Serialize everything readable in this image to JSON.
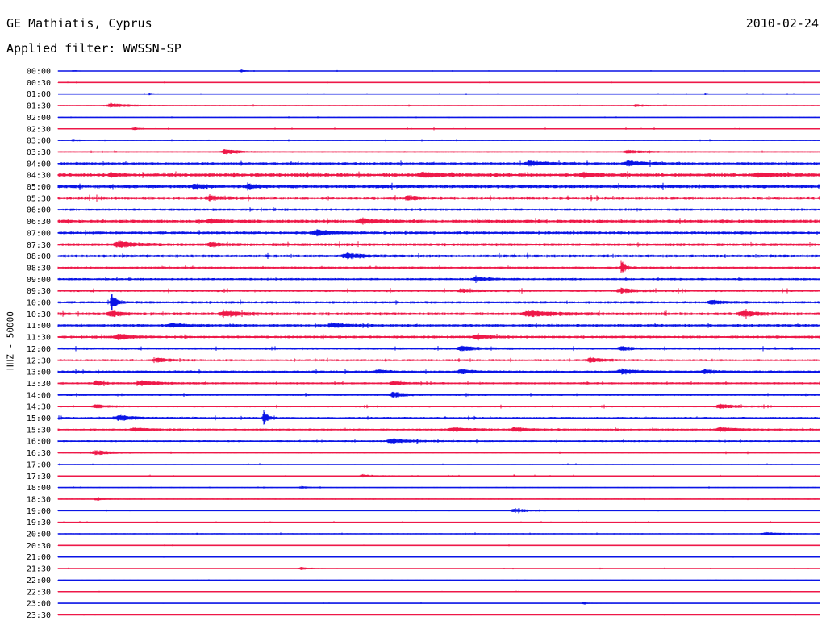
{
  "header": {
    "station": "GE Mathiatis, Cyprus",
    "date": "2010-02-24",
    "filter": "Applied filter: WWSSN-SP"
  },
  "chart_data": {
    "type": "line",
    "title": "GE Mathiatis, Cyprus",
    "ylabel": "HHZ - 50000",
    "colors": [
      "#0a14e6",
      "#ee1848"
    ],
    "rows": [
      {
        "label": "00:00",
        "noise": 0.5,
        "events": [
          [
            0.02,
            1.2,
            0.01
          ],
          [
            0.24,
            1.5,
            0.018
          ]
        ]
      },
      {
        "label": "00:30",
        "noise": 0.6,
        "events": []
      },
      {
        "label": "01:00",
        "noise": 0.6,
        "events": [
          [
            0.12,
            1.6,
            0.012
          ],
          [
            0.85,
            1.3,
            0.01
          ]
        ]
      },
      {
        "label": "01:30",
        "noise": 0.8,
        "events": [
          [
            0.07,
            3.0,
            0.045
          ],
          [
            0.76,
            1.6,
            0.025
          ]
        ]
      },
      {
        "label": "02:00",
        "noise": 0.6,
        "events": []
      },
      {
        "label": "02:30",
        "noise": 0.8,
        "events": [
          [
            0.1,
            1.5,
            0.02
          ]
        ]
      },
      {
        "label": "03:00",
        "noise": 0.9,
        "events": [
          [
            0.02,
            1.2,
            0.02
          ]
        ]
      },
      {
        "label": "03:30",
        "noise": 1.0,
        "events": [
          [
            0.22,
            3.2,
            0.04
          ],
          [
            0.75,
            2.2,
            0.05
          ]
        ]
      },
      {
        "label": "04:00",
        "noise": 1.6,
        "events": [
          [
            0.62,
            3.5,
            0.04
          ],
          [
            0.75,
            3.0,
            0.05
          ]
        ]
      },
      {
        "label": "04:30",
        "noise": 2.2,
        "events": [
          [
            0.07,
            2.6,
            0.02
          ],
          [
            0.48,
            2.6,
            0.05
          ],
          [
            0.69,
            2.5,
            0.04
          ],
          [
            0.92,
            2.6,
            0.05
          ]
        ]
      },
      {
        "label": "05:00",
        "noise": 2.2,
        "events": [
          [
            0.18,
            2.5,
            0.03
          ],
          [
            0.25,
            2.3,
            0.03
          ]
        ]
      },
      {
        "label": "05:30",
        "noise": 2.0,
        "events": [
          [
            0.2,
            2.3,
            0.03
          ],
          [
            0.46,
            2.5,
            0.03
          ]
        ]
      },
      {
        "label": "06:00",
        "noise": 1.6,
        "events": []
      },
      {
        "label": "06:30",
        "noise": 2.1,
        "events": [
          [
            0.2,
            2.3,
            0.03
          ],
          [
            0.4,
            3.0,
            0.04
          ]
        ]
      },
      {
        "label": "07:00",
        "noise": 1.8,
        "events": [
          [
            0.34,
            3.6,
            0.04
          ]
        ]
      },
      {
        "label": "07:30",
        "noise": 1.9,
        "events": [
          [
            0.08,
            3.6,
            0.05
          ],
          [
            0.2,
            2.4,
            0.03
          ]
        ]
      },
      {
        "label": "08:00",
        "noise": 1.9,
        "events": [
          [
            0.38,
            3.5,
            0.04
          ]
        ]
      },
      {
        "label": "08:30",
        "noise": 1.4,
        "events": [
          [
            0.74,
            10.0,
            0.01
          ]
        ]
      },
      {
        "label": "09:00",
        "noise": 1.5,
        "events": [
          [
            0.55,
            2.6,
            0.04
          ]
        ]
      },
      {
        "label": "09:30",
        "noise": 1.6,
        "events": [
          [
            0.53,
            2.5,
            0.03
          ],
          [
            0.74,
            3.0,
            0.04
          ]
        ]
      },
      {
        "label": "10:00",
        "noise": 1.6,
        "events": [
          [
            0.07,
            12.0,
            0.012
          ],
          [
            0.86,
            2.4,
            0.04
          ]
        ]
      },
      {
        "label": "10:30",
        "noise": 2.0,
        "events": [
          [
            0.07,
            3.2,
            0.03
          ],
          [
            0.22,
            3.0,
            0.05
          ],
          [
            0.62,
            3.5,
            0.06
          ],
          [
            0.9,
            3.0,
            0.04
          ]
        ]
      },
      {
        "label": "11:00",
        "noise": 1.7,
        "events": [
          [
            0.15,
            2.6,
            0.04
          ],
          [
            0.36,
            2.8,
            0.04
          ]
        ]
      },
      {
        "label": "11:30",
        "noise": 1.7,
        "events": [
          [
            0.08,
            3.5,
            0.04
          ],
          [
            0.55,
            2.5,
            0.04
          ]
        ]
      },
      {
        "label": "12:00",
        "noise": 1.5,
        "events": [
          [
            0.53,
            3.0,
            0.04
          ],
          [
            0.74,
            2.4,
            0.03
          ]
        ]
      },
      {
        "label": "12:30",
        "noise": 1.4,
        "events": [
          [
            0.13,
            2.6,
            0.04
          ],
          [
            0.7,
            3.0,
            0.04
          ]
        ]
      },
      {
        "label": "13:00",
        "noise": 1.6,
        "events": [
          [
            0.42,
            2.4,
            0.03
          ],
          [
            0.53,
            2.6,
            0.04
          ],
          [
            0.74,
            3.0,
            0.05
          ],
          [
            0.85,
            2.6,
            0.03
          ]
        ]
      },
      {
        "label": "13:30",
        "noise": 1.4,
        "events": [
          [
            0.05,
            3.4,
            0.02
          ],
          [
            0.11,
            2.8,
            0.05
          ],
          [
            0.44,
            2.4,
            0.03
          ]
        ]
      },
      {
        "label": "14:00",
        "noise": 1.3,
        "events": [
          [
            0.44,
            3.8,
            0.03
          ]
        ]
      },
      {
        "label": "14:30",
        "noise": 1.2,
        "events": [
          [
            0.05,
            2.4,
            0.03
          ],
          [
            0.87,
            3.0,
            0.04
          ]
        ]
      },
      {
        "label": "15:00",
        "noise": 1.5,
        "events": [
          [
            0.08,
            2.8,
            0.05
          ],
          [
            0.27,
            11.0,
            0.01
          ]
        ]
      },
      {
        "label": "15:30",
        "noise": 1.3,
        "events": [
          [
            0.1,
            2.2,
            0.04
          ],
          [
            0.52,
            2.6,
            0.05
          ],
          [
            0.6,
            2.6,
            0.04
          ],
          [
            0.87,
            3.2,
            0.04
          ]
        ]
      },
      {
        "label": "16:00",
        "noise": 1.2,
        "events": [
          [
            0.44,
            3.0,
            0.05
          ]
        ]
      },
      {
        "label": "16:30",
        "noise": 0.9,
        "events": [
          [
            0.05,
            3.2,
            0.04
          ]
        ]
      },
      {
        "label": "17:00",
        "noise": 0.8,
        "events": []
      },
      {
        "label": "17:30",
        "noise": 0.8,
        "events": [
          [
            0.4,
            1.8,
            0.03
          ]
        ]
      },
      {
        "label": "18:00",
        "noise": 0.7,
        "events": [
          [
            0.32,
            1.5,
            0.02
          ]
        ]
      },
      {
        "label": "18:30",
        "noise": 0.8,
        "events": [
          [
            0.05,
            2.0,
            0.02
          ]
        ]
      },
      {
        "label": "19:00",
        "noise": 0.7,
        "events": [
          [
            0.6,
            2.8,
            0.04
          ]
        ]
      },
      {
        "label": "19:30",
        "noise": 0.7,
        "events": []
      },
      {
        "label": "20:00",
        "noise": 0.8,
        "events": [
          [
            0.93,
            1.8,
            0.04
          ]
        ]
      },
      {
        "label": "20:30",
        "noise": 0.6,
        "events": []
      },
      {
        "label": "21:00",
        "noise": 0.6,
        "events": []
      },
      {
        "label": "21:30",
        "noise": 0.6,
        "events": [
          [
            0.32,
            1.6,
            0.03
          ]
        ]
      },
      {
        "label": "22:00",
        "noise": 0.5,
        "events": []
      },
      {
        "label": "22:30",
        "noise": 0.5,
        "events": []
      },
      {
        "label": "23:00",
        "noise": 0.5,
        "events": [
          [
            0.69,
            1.8,
            0.015
          ]
        ]
      },
      {
        "label": "23:30",
        "noise": 0.5,
        "events": []
      }
    ]
  }
}
